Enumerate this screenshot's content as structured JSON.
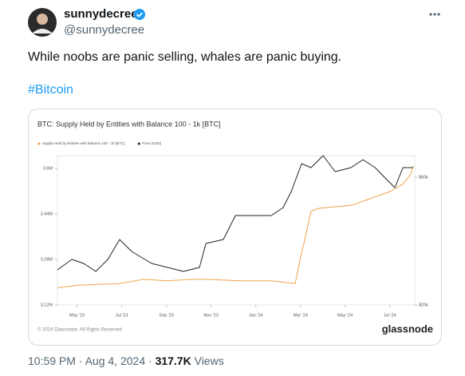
{
  "post": {
    "author_name": "sunnydecree",
    "handle": "@sunnydecree",
    "text": "While noobs are panic selling, whales are panic buying.",
    "hashtag": "#Bitcoin",
    "date_time": "10:59 PM · Aug 4, 2024",
    "separator": "·",
    "views": "317.7K",
    "views_label": "Views"
  },
  "chart_data": {
    "type": "line",
    "title": "BTC: Supply Held by Entities with Balance 100 - 1k [BTC]",
    "xlim": [
      2023.26,
      2024.593
    ],
    "xticks": [
      {
        "value": 2023.333,
        "label": "May '23"
      },
      {
        "value": 2023.5,
        "label": "Jul '23"
      },
      {
        "value": 2023.667,
        "label": "Sep '23"
      },
      {
        "value": 2023.833,
        "label": "Nov '23"
      },
      {
        "value": 2024.0,
        "label": "Jan '24"
      },
      {
        "value": 2024.167,
        "label": "Mar '24"
      },
      {
        "value": 2024.333,
        "label": "May '24"
      },
      {
        "value": 2024.5,
        "label": "Jul '24"
      }
    ],
    "ylim": [
      3120000,
      3645000
    ],
    "yticks": [
      {
        "value": 3120000,
        "label": "3.12M"
      },
      {
        "value": 3280000,
        "label": "3.28M"
      },
      {
        "value": 3440000,
        "label": "3.44M"
      },
      {
        "value": 3600000,
        "label": "3.6M"
      }
    ],
    "y2lim": [
      20000,
      66750
    ],
    "y2ticks": [
      {
        "value": 20000,
        "label": "$20k"
      },
      {
        "value": 60000,
        "label": "$60k"
      }
    ],
    "series": [
      {
        "name": "Supply Held by Entities with Balance 100 - 1k [BTC]",
        "color": "#f0a350",
        "x": [
          2023.26,
          2023.343,
          2023.492,
          2023.581,
          2023.671,
          2023.76,
          2023.82,
          2023.939,
          2024.058,
          2024.147,
          2024.165,
          2024.183,
          2024.206,
          2024.236,
          2024.355,
          2024.445,
          2024.504,
          2024.549,
          2024.578,
          2024.587
        ],
        "values": [
          3180000,
          3190000,
          3195000,
          3210000,
          3205000,
          3210000,
          3210000,
          3205000,
          3205000,
          3195000,
          3280000,
          3350000,
          3450000,
          3460000,
          3470000,
          3500000,
          3520000,
          3545000,
          3580000,
          3610000
        ]
      },
      {
        "name": "Price [USD]",
        "color": "#222222",
        "axis": "y2",
        "x": [
          2023.26,
          2023.314,
          2023.358,
          2023.403,
          2023.448,
          2023.492,
          2023.537,
          2023.611,
          2023.671,
          2023.73,
          2023.79,
          2023.814,
          2023.879,
          2023.924,
          2023.998,
          2024.058,
          2024.102,
          2024.132,
          2024.171,
          2024.206,
          2024.251,
          2024.296,
          2024.355,
          2024.4,
          2024.445,
          2024.489,
          2024.519,
          2024.549,
          2024.587
        ],
        "values": [
          31000,
          34250,
          33000,
          30500,
          34250,
          40500,
          36750,
          33000,
          31750,
          30500,
          31750,
          39250,
          40500,
          48000,
          48000,
          48000,
          50500,
          55500,
          64250,
          63000,
          66750,
          61750,
          63000,
          65500,
          63000,
          59250,
          56750,
          63000,
          63000
        ]
      }
    ],
    "copyright": "© 2024 Glassnode. All Rights Reserved.",
    "brand": "glassnode"
  }
}
